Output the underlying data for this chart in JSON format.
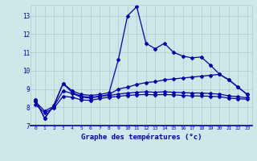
{
  "title": "Graphe des températures (°c)",
  "bg_color": "#cce8e8",
  "grid_color": "#aacccc",
  "line_color": "#0000aa",
  "xlim": [
    -0.5,
    23.5
  ],
  "ylim": [
    7,
    13.6
  ],
  "yticks": [
    7,
    8,
    9,
    10,
    11,
    12,
    13
  ],
  "xticks": [
    0,
    1,
    2,
    3,
    4,
    5,
    6,
    7,
    8,
    9,
    10,
    11,
    12,
    13,
    14,
    15,
    16,
    17,
    18,
    19,
    20,
    21,
    22,
    23
  ],
  "series1": [
    8.4,
    7.4,
    8.1,
    9.3,
    8.9,
    8.7,
    8.65,
    8.7,
    8.8,
    10.6,
    13.0,
    13.5,
    11.5,
    11.2,
    11.5,
    11.0,
    10.8,
    10.7,
    10.75,
    10.3,
    9.8,
    9.5,
    9.1,
    8.7
  ],
  "series2": [
    8.4,
    7.4,
    8.1,
    9.3,
    8.8,
    8.6,
    8.55,
    8.6,
    8.7,
    9.0,
    9.1,
    9.25,
    9.35,
    9.4,
    9.5,
    9.55,
    9.6,
    9.65,
    9.7,
    9.75,
    9.8,
    9.5,
    9.1,
    8.7
  ],
  "series3": [
    8.3,
    7.8,
    8.05,
    8.9,
    8.75,
    8.55,
    8.5,
    8.6,
    8.65,
    8.72,
    8.78,
    8.82,
    8.85,
    8.82,
    8.85,
    8.82,
    8.8,
    8.78,
    8.78,
    8.75,
    8.72,
    8.62,
    8.58,
    8.52
  ],
  "series4": [
    8.15,
    7.7,
    7.95,
    8.6,
    8.55,
    8.4,
    8.38,
    8.48,
    8.55,
    8.6,
    8.65,
    8.68,
    8.7,
    8.68,
    8.7,
    8.68,
    8.65,
    8.62,
    8.62,
    8.6,
    8.58,
    8.5,
    8.47,
    8.44
  ]
}
